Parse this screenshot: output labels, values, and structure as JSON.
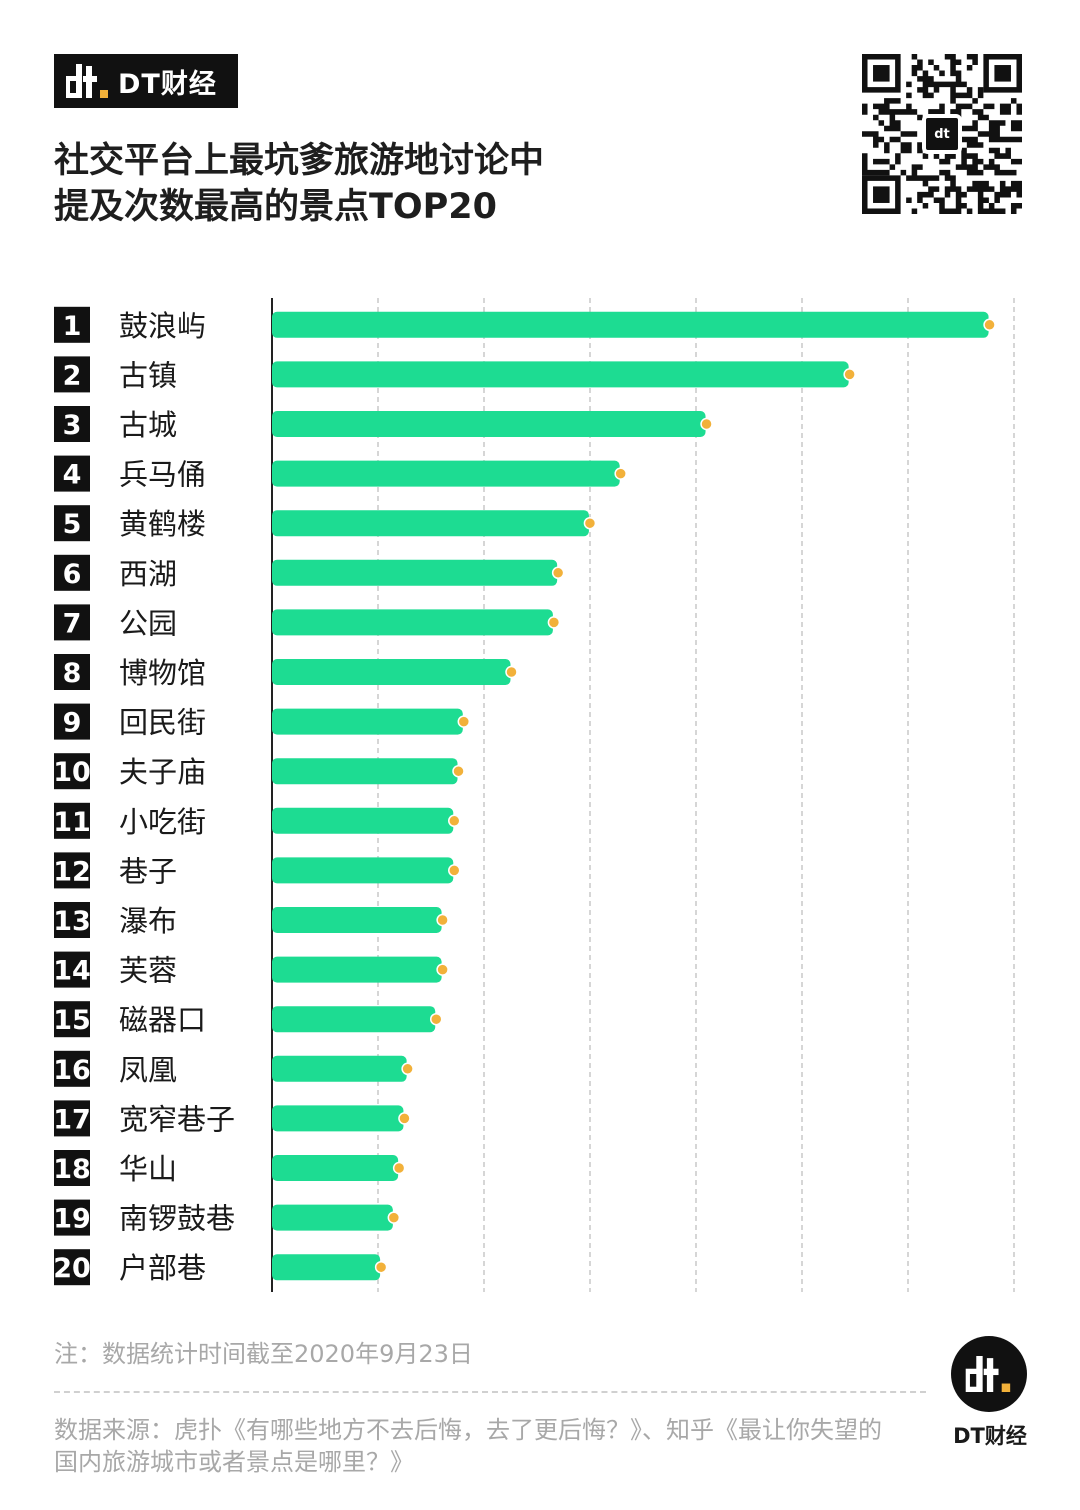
{
  "brand": {
    "name": "DT财经",
    "logo_icon": "dt-logo-icon"
  },
  "title": {
    "line1": "社交平台上最坑爹旅游地讨论中",
    "line2": "提及次数最高的景点TOP20"
  },
  "qr": {
    "icon": "qr-code-icon",
    "center_label": "dt"
  },
  "colors": {
    "bar": "#1ddc92",
    "dot": "#f2b13a",
    "rank_bg": "#111111",
    "grid": "#c8c8c8",
    "axis": "#222222"
  },
  "chart_data": {
    "type": "bar",
    "orientation": "horizontal",
    "categories": [
      "鼓浪屿",
      "古镇",
      "古城",
      "兵马俑",
      "黄鹤楼",
      "西湖",
      "公园",
      "博物馆",
      "回民街",
      "夫子庙",
      "小吃街",
      "巷子",
      "瀑布",
      "芙蓉",
      "磁器口",
      "凤凰",
      "宽窄巷子",
      "华山",
      "南锣鼓巷",
      "户部巷"
    ],
    "ranks": [
      "1",
      "2",
      "3",
      "4",
      "5",
      "6",
      "7",
      "8",
      "9",
      "10",
      "11",
      "12",
      "13",
      "14",
      "15",
      "16",
      "17",
      "18",
      "19",
      "20"
    ],
    "values": [
      6.76,
      5.44,
      4.09,
      3.28,
      2.99,
      2.69,
      2.65,
      2.25,
      1.8,
      1.75,
      1.71,
      1.71,
      1.6,
      1.6,
      1.54,
      1.27,
      1.24,
      1.19,
      1.14,
      1.02
    ],
    "xlim": [
      0,
      7
    ],
    "grid": "vertical-dashed",
    "legend": "none"
  },
  "note": "注：数据统计时间截至2020年9月23日",
  "source": {
    "line1": "数据来源：虎扑《有哪些地方不去后悔，去了更后悔？》、知乎《最让你失望的",
    "line2": "国内旅游城市或者景点是哪里？》"
  },
  "footer": {
    "name": "DT财经",
    "logo_icon": "dt-round-logo-icon"
  }
}
